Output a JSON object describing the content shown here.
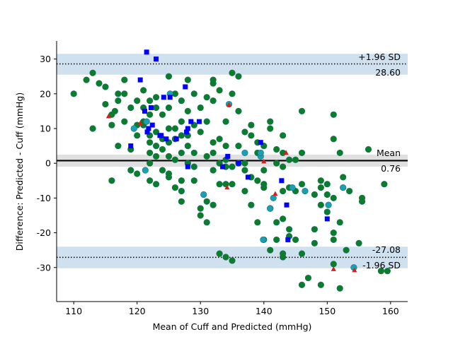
{
  "chart_data": {
    "type": "scatter",
    "title": "",
    "xlabel": "Mean of Cuff and Predicted (mmHg)",
    "ylabel": "Difference: Predicted - Cuff (mmHg)",
    "xlim": [
      107.3,
      162.7
    ],
    "ylim": [
      -39.8,
      35.2
    ],
    "xticks": [
      110,
      120,
      130,
      140,
      150,
      160
    ],
    "yticks": [
      -30,
      -20,
      -10,
      0,
      10,
      20,
      30
    ],
    "mean_bias": 0.76,
    "upper_loa": 28.6,
    "lower_loa": -27.08,
    "bias_ci": [
      -1.0,
      2.5
    ],
    "upper_loa_ci": [
      25.5,
      31.5
    ],
    "lower_loa_ci": [
      -30.2,
      -24.0
    ],
    "annotations": {
      "upper_name": "+1.96 SD",
      "upper_value": "28.60",
      "mean_name": "Mean",
      "mean_value": "0.76",
      "lower_value": "-27.08",
      "lower_name": "-1.96 SD"
    },
    "series": [
      {
        "name": "green",
        "color": "#0a7d28",
        "marker": "circle",
        "points": [
          [
            110,
            20
          ],
          [
            112,
            24
          ],
          [
            113,
            26
          ],
          [
            113,
            10
          ],
          [
            114,
            23
          ],
          [
            115,
            22
          ],
          [
            115,
            17
          ],
          [
            116,
            14
          ],
          [
            116,
            11
          ],
          [
            116,
            -5
          ],
          [
            116.5,
            15
          ],
          [
            117,
            20
          ],
          [
            117,
            18
          ],
          [
            117,
            5
          ],
          [
            118,
            24
          ],
          [
            118,
            20
          ],
          [
            118,
            12
          ],
          [
            119,
            16
          ],
          [
            119,
            -2
          ],
          [
            119,
            4
          ],
          [
            120,
            18
          ],
          [
            120,
            11
          ],
          [
            120,
            8
          ],
          [
            120,
            -3
          ],
          [
            121,
            21
          ],
          [
            121,
            16
          ],
          [
            121,
            12
          ],
          [
            121,
            11
          ],
          [
            122,
            18
          ],
          [
            122,
            14
          ],
          [
            122,
            8
          ],
          [
            122,
            6
          ],
          [
            122,
            3
          ],
          [
            122,
            0
          ],
          [
            122,
            -5
          ],
          [
            123,
            19
          ],
          [
            123,
            16
          ],
          [
            123,
            9
          ],
          [
            123,
            5
          ],
          [
            123,
            2
          ],
          [
            123,
            -6
          ],
          [
            124,
            14
          ],
          [
            124,
            7
          ],
          [
            124,
            4
          ],
          [
            124,
            -2
          ],
          [
            125,
            25
          ],
          [
            125,
            16
          ],
          [
            125,
            10
          ],
          [
            125,
            6
          ],
          [
            125,
            2
          ],
          [
            125,
            -4
          ],
          [
            125,
            -3
          ],
          [
            126,
            20
          ],
          [
            126,
            10
          ],
          [
            126,
            7
          ],
          [
            126,
            -7
          ],
          [
            126,
            1
          ],
          [
            127,
            18
          ],
          [
            127,
            12
          ],
          [
            127,
            8
          ],
          [
            127,
            3
          ],
          [
            127,
            -5
          ],
          [
            127,
            -8
          ],
          [
            127,
            -11
          ],
          [
            128,
            24
          ],
          [
            128,
            15
          ],
          [
            128,
            8
          ],
          [
            128,
            5
          ],
          [
            128,
            0
          ],
          [
            129,
            20
          ],
          [
            129,
            11
          ],
          [
            129,
            3
          ],
          [
            129,
            -1
          ],
          [
            129,
            -5
          ],
          [
            130,
            16
          ],
          [
            130,
            9
          ],
          [
            130,
            -13
          ],
          [
            130,
            -15
          ],
          [
            131,
            19
          ],
          [
            131,
            12
          ],
          [
            131,
            2
          ],
          [
            131,
            -17
          ],
          [
            131,
            -11
          ],
          [
            132,
            24
          ],
          [
            132,
            23
          ],
          [
            132,
            18
          ],
          [
            132,
            6
          ],
          [
            132,
            3
          ],
          [
            132,
            -2
          ],
          [
            132,
            -12
          ],
          [
            133,
            21
          ],
          [
            133,
            7
          ],
          [
            133,
            0
          ],
          [
            133,
            -6
          ],
          [
            133,
            -26
          ],
          [
            134,
            12
          ],
          [
            134,
            5
          ],
          [
            134,
            1
          ],
          [
            134,
            -1
          ],
          [
            134,
            -6
          ],
          [
            134,
            -27
          ],
          [
            135,
            26
          ],
          [
            135,
            20
          ],
          [
            135,
            -1
          ],
          [
            135,
            -6
          ],
          [
            135,
            -28
          ],
          [
            136,
            25
          ],
          [
            136,
            15
          ],
          [
            136,
            5
          ],
          [
            136,
            0
          ],
          [
            137,
            9
          ],
          [
            137,
            0
          ],
          [
            137,
            -2
          ],
          [
            137,
            -8
          ],
          [
            138,
            11
          ],
          [
            138,
            8
          ],
          [
            138,
            -12
          ],
          [
            138,
            -4
          ],
          [
            139,
            6
          ],
          [
            139,
            3
          ],
          [
            139,
            -5
          ],
          [
            139,
            -17
          ],
          [
            140,
            5
          ],
          [
            140,
            -2
          ],
          [
            140,
            -7
          ],
          [
            140,
            -6
          ],
          [
            140,
            -22
          ],
          [
            141,
            12
          ],
          [
            141,
            10
          ],
          [
            141,
            -13
          ],
          [
            141,
            -25
          ],
          [
            142,
            4
          ],
          [
            142,
            0
          ],
          [
            142,
            -17
          ],
          [
            142,
            -22
          ],
          [
            143,
            8
          ],
          [
            143,
            3
          ],
          [
            143,
            -1
          ],
          [
            143,
            -8
          ],
          [
            143,
            -16
          ],
          [
            143,
            -26
          ],
          [
            143,
            -27
          ],
          [
            144,
            1
          ],
          [
            144,
            -7
          ],
          [
            144,
            -21
          ],
          [
            144,
            -19
          ],
          [
            145,
            1
          ],
          [
            145,
            -8
          ],
          [
            145,
            -22
          ],
          [
            146,
            15
          ],
          [
            146,
            3
          ],
          [
            146,
            -6
          ],
          [
            146,
            -26
          ],
          [
            146,
            -35
          ],
          [
            147,
            -33
          ],
          [
            148,
            -9
          ],
          [
            148,
            -19
          ],
          [
            148,
            -23
          ],
          [
            149,
            -5
          ],
          [
            149,
            -7
          ],
          [
            149,
            -12
          ],
          [
            149,
            -35
          ],
          [
            150,
            -14
          ],
          [
            150,
            -6
          ],
          [
            150,
            -9
          ],
          [
            151,
            14
          ],
          [
            151,
            7
          ],
          [
            151,
            -10
          ],
          [
            151,
            -20
          ],
          [
            151,
            -22
          ],
          [
            151,
            -29
          ],
          [
            152,
            3
          ],
          [
            152,
            -17
          ],
          [
            152,
            -36
          ],
          [
            152.5,
            -4
          ],
          [
            153,
            -25
          ],
          [
            153.5,
            -8
          ],
          [
            155,
            -23
          ],
          [
            155.5,
            -11
          ],
          [
            155.5,
            -10
          ],
          [
            156.5,
            4
          ],
          [
            158.5,
            -31
          ],
          [
            159,
            -6
          ],
          [
            159.5,
            -31
          ]
        ]
      },
      {
        "name": "teal",
        "color": "#1aa0b4",
        "marker": "circle",
        "points": [
          [
            119.5,
            10
          ],
          [
            121.3,
            -2
          ],
          [
            121.5,
            12
          ],
          [
            125.2,
            20
          ],
          [
            130.5,
            -9
          ],
          [
            134.5,
            17
          ],
          [
            137,
            3
          ],
          [
            139.5,
            2
          ],
          [
            139.5,
            3
          ],
          [
            139.9,
            -22
          ],
          [
            141,
            -13
          ],
          [
            141.5,
            -10
          ],
          [
            144.5,
            -7
          ],
          [
            146.5,
            -8
          ],
          [
            150.2,
            -12
          ],
          [
            152.5,
            -7
          ],
          [
            154.2,
            -30
          ]
        ]
      },
      {
        "name": "blue",
        "color": "#0000ff",
        "marker": "square",
        "points": [
          [
            121.5,
            32
          ],
          [
            123,
            30
          ],
          [
            120.5,
            24
          ],
          [
            127.6,
            22
          ],
          [
            124.2,
            19
          ],
          [
            125.2,
            19
          ],
          [
            121.2,
            15
          ],
          [
            122.2,
            16
          ],
          [
            122.4,
            11
          ],
          [
            121.8,
            10
          ],
          [
            121.6,
            9
          ],
          [
            123.8,
            8
          ],
          [
            124.6,
            7
          ],
          [
            123.6,
            8
          ],
          [
            127.8,
            9
          ],
          [
            128.5,
            12
          ],
          [
            129.8,
            12
          ],
          [
            128,
            10
          ],
          [
            126.2,
            7
          ],
          [
            119,
            5
          ],
          [
            128,
            -1
          ],
          [
            133.5,
            -1
          ],
          [
            134.3,
            2
          ],
          [
            136,
            0
          ],
          [
            137.5,
            -4
          ],
          [
            139.5,
            6
          ],
          [
            142.8,
            -5
          ],
          [
            143.6,
            -12
          ],
          [
            143.8,
            -22
          ],
          [
            150,
            -16
          ]
        ]
      },
      {
        "name": "red",
        "color": "#d42020",
        "marker": "triangle",
        "points": [
          [
            120.5,
            11.5
          ],
          [
            115.5,
            13.5
          ],
          [
            134.5,
            16.8
          ],
          [
            134.2,
            -7
          ],
          [
            140,
            0.5
          ],
          [
            141.8,
            -8.8
          ],
          [
            143.5,
            3
          ],
          [
            151,
            -30.5
          ],
          [
            154.3,
            -30.8
          ]
        ]
      }
    ]
  }
}
